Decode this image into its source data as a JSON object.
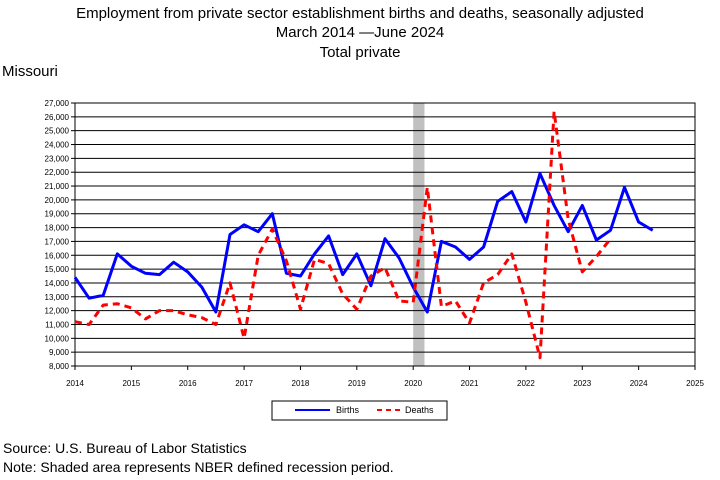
{
  "title_line1": "Employment from private sector establishment births and deaths, seasonally adjusted",
  "title_line2_start": "March 2014",
  "title_line2_end": "June 2024",
  "title_line3": "Total private",
  "region": "Missouri",
  "footer_source": "Source: U.S. Bureau of Labor Statistics",
  "footer_note": "Note: Shaded area represents NBER defined recession period.",
  "colors": {
    "births": "#0000ff",
    "deaths": "#ff0000",
    "recession": "#c0c0c0"
  },
  "chart_data": {
    "type": "line",
    "xlim": [
      2014,
      2025
    ],
    "ylim": [
      8000,
      27000
    ],
    "y_ticks": [
      "8,000",
      "9,000",
      "10,000",
      "11,000",
      "12,000",
      "13,000",
      "14,000",
      "15,000",
      "16,000",
      "17,000",
      "18,000",
      "19,000",
      "20,000",
      "21,000",
      "22,000",
      "23,000",
      "24,000",
      "25,000",
      "26,000",
      "27,000"
    ],
    "x_ticks": [
      "2014",
      "2015",
      "2016",
      "2017",
      "2018",
      "2019",
      "2020",
      "2021",
      "2022",
      "2023",
      "2024",
      "2025"
    ],
    "grid": true,
    "recession": [
      2020.0,
      2020.2
    ],
    "legend_placement": "bottom-center",
    "series": [
      {
        "name": "Births",
        "style": "solid",
        "x": [
          2014.0,
          2014.25,
          2014.5,
          2014.75,
          2015.0,
          2015.25,
          2015.5,
          2015.75,
          2016.0,
          2016.25,
          2016.5,
          2016.75,
          2017.0,
          2017.25,
          2017.5,
          2017.75,
          2018.0,
          2018.25,
          2018.5,
          2018.75,
          2019.0,
          2019.25,
          2019.5,
          2019.75,
          2020.0,
          2020.25,
          2020.5,
          2020.75,
          2021.0,
          2021.25,
          2021.5,
          2021.75,
          2022.0,
          2022.25,
          2022.5,
          2022.75,
          2023.0,
          2023.25,
          2023.5,
          2023.75,
          2024.0,
          2024.25
        ],
        "y": [
          14400,
          12900,
          13100,
          16100,
          15200,
          14700,
          14600,
          15500,
          14800,
          13700,
          11900,
          17500,
          18200,
          17700,
          19000,
          14700,
          14500,
          16100,
          17400,
          14600,
          16100,
          13800,
          17200,
          15800,
          13700,
          11900,
          17000,
          16600,
          15700,
          16600,
          19900,
          20600,
          18400,
          21900,
          19600,
          17700,
          19600,
          17100,
          17800,
          20900,
          18400,
          17800
        ]
      },
      {
        "name": "Deaths",
        "style": "dashed",
        "x": [
          2014.0,
          2014.25,
          2014.5,
          2014.75,
          2015.0,
          2015.25,
          2015.5,
          2015.75,
          2016.0,
          2016.25,
          2016.5,
          2016.75,
          2017.0,
          2017.25,
          2017.5,
          2017.75,
          2018.0,
          2018.25,
          2018.5,
          2018.75,
          2019.0,
          2019.25,
          2019.5,
          2019.75,
          2020.0,
          2020.25,
          2020.5,
          2020.75,
          2021.0,
          2021.25,
          2021.5,
          2021.75,
          2022.0,
          2022.25,
          2022.5,
          2022.75,
          2023.0,
          2023.25,
          2023.5
        ],
        "y": [
          11200,
          11000,
          12400,
          12500,
          12200,
          11400,
          12000,
          12000,
          11700,
          11500,
          11000,
          14000,
          10000,
          16000,
          17900,
          15600,
          12100,
          15700,
          15400,
          13200,
          12100,
          14500,
          15100,
          12700,
          12600,
          20900,
          12300,
          12700,
          11100,
          14000,
          14600,
          16100,
          12600,
          8600,
          26400,
          18600,
          14800,
          15900,
          17200
        ]
      }
    ]
  }
}
